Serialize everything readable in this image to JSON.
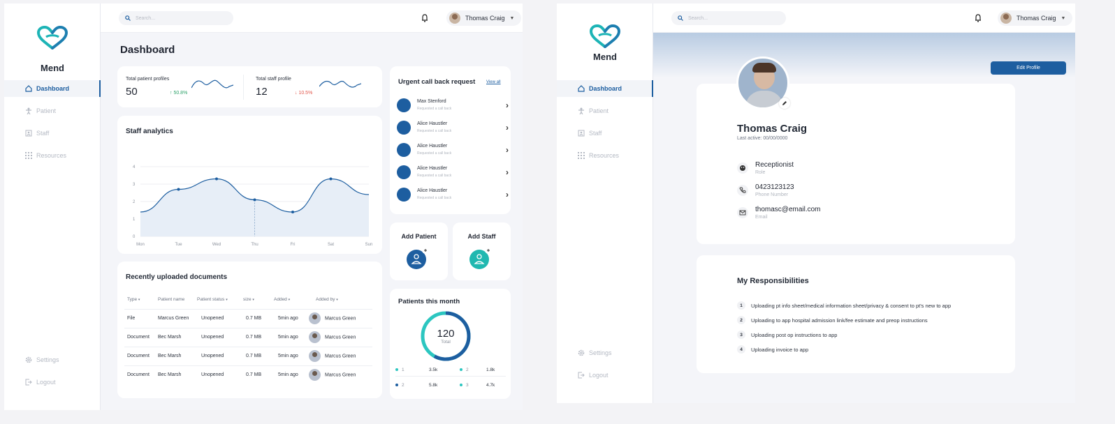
{
  "brand": "Mend",
  "nav": {
    "dashboard": "Dashboard",
    "patient": "Patient",
    "staff": "Staff",
    "resources": "Resources",
    "settings": "Settings",
    "logout": "Logout"
  },
  "search": {
    "placeholder": "Search..."
  },
  "user": {
    "name": "Thomas Craig"
  },
  "dashboard": {
    "title": "Dashboard",
    "stats": [
      {
        "label": "Total patient profiles",
        "value": "50",
        "change": "↑ 50.8%"
      },
      {
        "label": "Total staff profile",
        "value": "12",
        "change": "↓ 10.5%"
      }
    ],
    "analytics": {
      "title": "Staff analytics"
    },
    "documents": {
      "title": "Recently uploaded documents",
      "headers": [
        "Type",
        "Patient name",
        "Patient status",
        "size",
        "Added",
        "Added by"
      ],
      "rows": [
        [
          "File",
          "Marcus Green",
          "Unopened",
          "0.7 MB",
          "5min ago",
          "Marcus Green"
        ],
        [
          "Document",
          "Bec Marsh",
          "Unopened",
          "0.7 MB",
          "5min ago",
          "Marcus Green"
        ],
        [
          "Document",
          "Bec Marsh",
          "Unopened",
          "0.7 MB",
          "5min ago",
          "Marcus Green"
        ],
        [
          "Document",
          "Bec Marsh",
          "Unopened",
          "0.7 MB",
          "5min ago",
          "Marcus Green"
        ]
      ]
    },
    "callback": {
      "title": "Urgent call back request",
      "view_all": "View all",
      "sub": "Requested a call back",
      "names": [
        "Max Stenford",
        "Alice Haustler",
        "Alice Haustler",
        "Alice Haustler",
        "Alice Haustler"
      ]
    },
    "add_patient": "Add Patient",
    "add_staff": "Add Staff",
    "patients_month": {
      "title": "Patients this month",
      "total": "120",
      "total_label": "Total",
      "legend": [
        {
          "label": "1",
          "value": "3.5k",
          "color": "#2cc6c0"
        },
        {
          "label": "2",
          "value": "1.8k",
          "color": "#2cc6c0"
        },
        {
          "label": "2",
          "value": "5.8k",
          "color": "#1d5ea0"
        },
        {
          "label": "3",
          "value": "4.7k",
          "color": "#2cc6c0"
        }
      ],
      "segments": [
        0.58,
        0.42
      ]
    }
  },
  "chart_data": {
    "type": "line",
    "title": "Staff analytics",
    "categories": [
      "Mon",
      "Tue",
      "Wed",
      "Thu",
      "Fri",
      "Sat",
      "Sun"
    ],
    "values": [
      1.4,
      2.7,
      3.3,
      2.1,
      1.4,
      3.3,
      2.4
    ],
    "yticks": [
      "0",
      "1",
      "2",
      "3",
      "4"
    ],
    "ylim": [
      0,
      4
    ],
    "grid": true,
    "color": "#1d5ea0"
  },
  "profile": {
    "edit_button": "Edit Profile",
    "name": "Thomas Craig",
    "last_active": "Last active: 00/00/0000",
    "info": [
      {
        "value": "Receptionist",
        "label": "Role",
        "icon": "role-icon"
      },
      {
        "value": "0423123123",
        "label": "Phone Number",
        "icon": "phone-icon"
      },
      {
        "value": "thomasc@email.com",
        "label": "Email",
        "icon": "email-icon"
      }
    ],
    "responsibilities_title": "My Responsibilities",
    "responsibilities": [
      {
        "n": "1",
        "text": "Uploading pt info sheet/medical information sheet/privacy & consent to pt's new to app"
      },
      {
        "n": "2",
        "text": "Uploading to app hospital admission link/fee estimate and preop instructions"
      },
      {
        "n": "3",
        "text": "Uploading post op instructions to app"
      },
      {
        "n": "4",
        "text": "Uploading invoice to app"
      }
    ]
  },
  "colors": {
    "primary": "#1d5ea0",
    "teal": "#20b8b0",
    "up": "#2fa36b",
    "down": "#e2574c"
  }
}
